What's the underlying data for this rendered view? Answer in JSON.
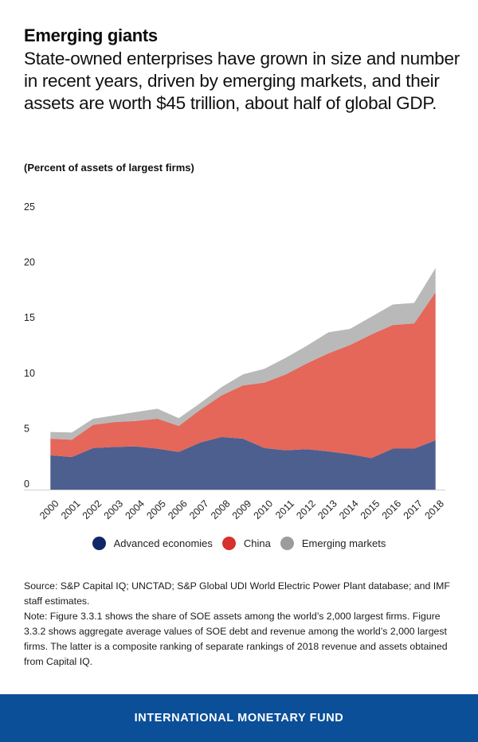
{
  "header": {
    "title": "Emerging giants",
    "subtitle": "State-owned enterprises have grown in size and number in recent years, driven by emerging markets, and their assets are worth $45 trillion, about half of global GDP."
  },
  "chart_data": {
    "type": "area",
    "stacked": true,
    "title": "Emerging giants",
    "ylabel": "(Percent of assets of largest firms)",
    "xlabel": "",
    "ylim": [
      0,
      25
    ],
    "yticks": [
      0,
      5,
      10,
      15,
      20,
      25
    ],
    "grid": false,
    "legend_position": "bottom",
    "categories": [
      "2000",
      "2001",
      "2002",
      "2003",
      "2004",
      "2005",
      "2006",
      "2007",
      "2008",
      "2009",
      "2010",
      "2011",
      "2012",
      "2013",
      "2014",
      "2015",
      "2016",
      "2017",
      "2018"
    ],
    "series": [
      {
        "name": "Advanced economies",
        "color": "#4d5f8f",
        "legend_color": "#12276a",
        "values": [
          3.1,
          2.95,
          3.75,
          3.85,
          3.9,
          3.7,
          3.4,
          4.25,
          4.75,
          4.6,
          3.75,
          3.55,
          3.65,
          3.45,
          3.2,
          2.85,
          3.7,
          3.7,
          4.45
        ]
      },
      {
        "name": "China",
        "color": "#e4675a",
        "legend_color": "#d8302a",
        "values": [
          1.5,
          1.55,
          2.1,
          2.25,
          2.3,
          2.7,
          2.35,
          2.95,
          3.75,
          4.8,
          5.9,
          6.85,
          7.75,
          8.85,
          9.85,
          11.15,
          11.15,
          11.3,
          13.35
        ]
      },
      {
        "name": "Emerging markets",
        "color": "#b9b9b9",
        "legend_color": "#9c9c9c",
        "values": [
          0.6,
          0.65,
          0.55,
          0.6,
          0.8,
          0.9,
          0.7,
          0.6,
          0.75,
          1.0,
          1.25,
          1.5,
          1.6,
          1.9,
          1.45,
          1.6,
          1.85,
          1.85,
          2.2
        ]
      }
    ]
  },
  "source": {
    "source_text": "Source: S&P Capital IQ; UNCTAD; S&P Global UDI World Electric Power Plant database; and IMF staff estimates.",
    "note_text": "Note: Figure 3.3.1 shows the share of SOE assets among the world’s 2,000 largest firms. Figure 3.3.2 shows aggregate average values of SOE debt and revenue among the world’s 2,000 largest firms. The latter is a composite ranking of separate rankings of 2018 revenue and assets obtained from Capital IQ."
  },
  "footer": {
    "label": "INTERNATIONAL MONETARY FUND",
    "color": "#0b4f98"
  }
}
